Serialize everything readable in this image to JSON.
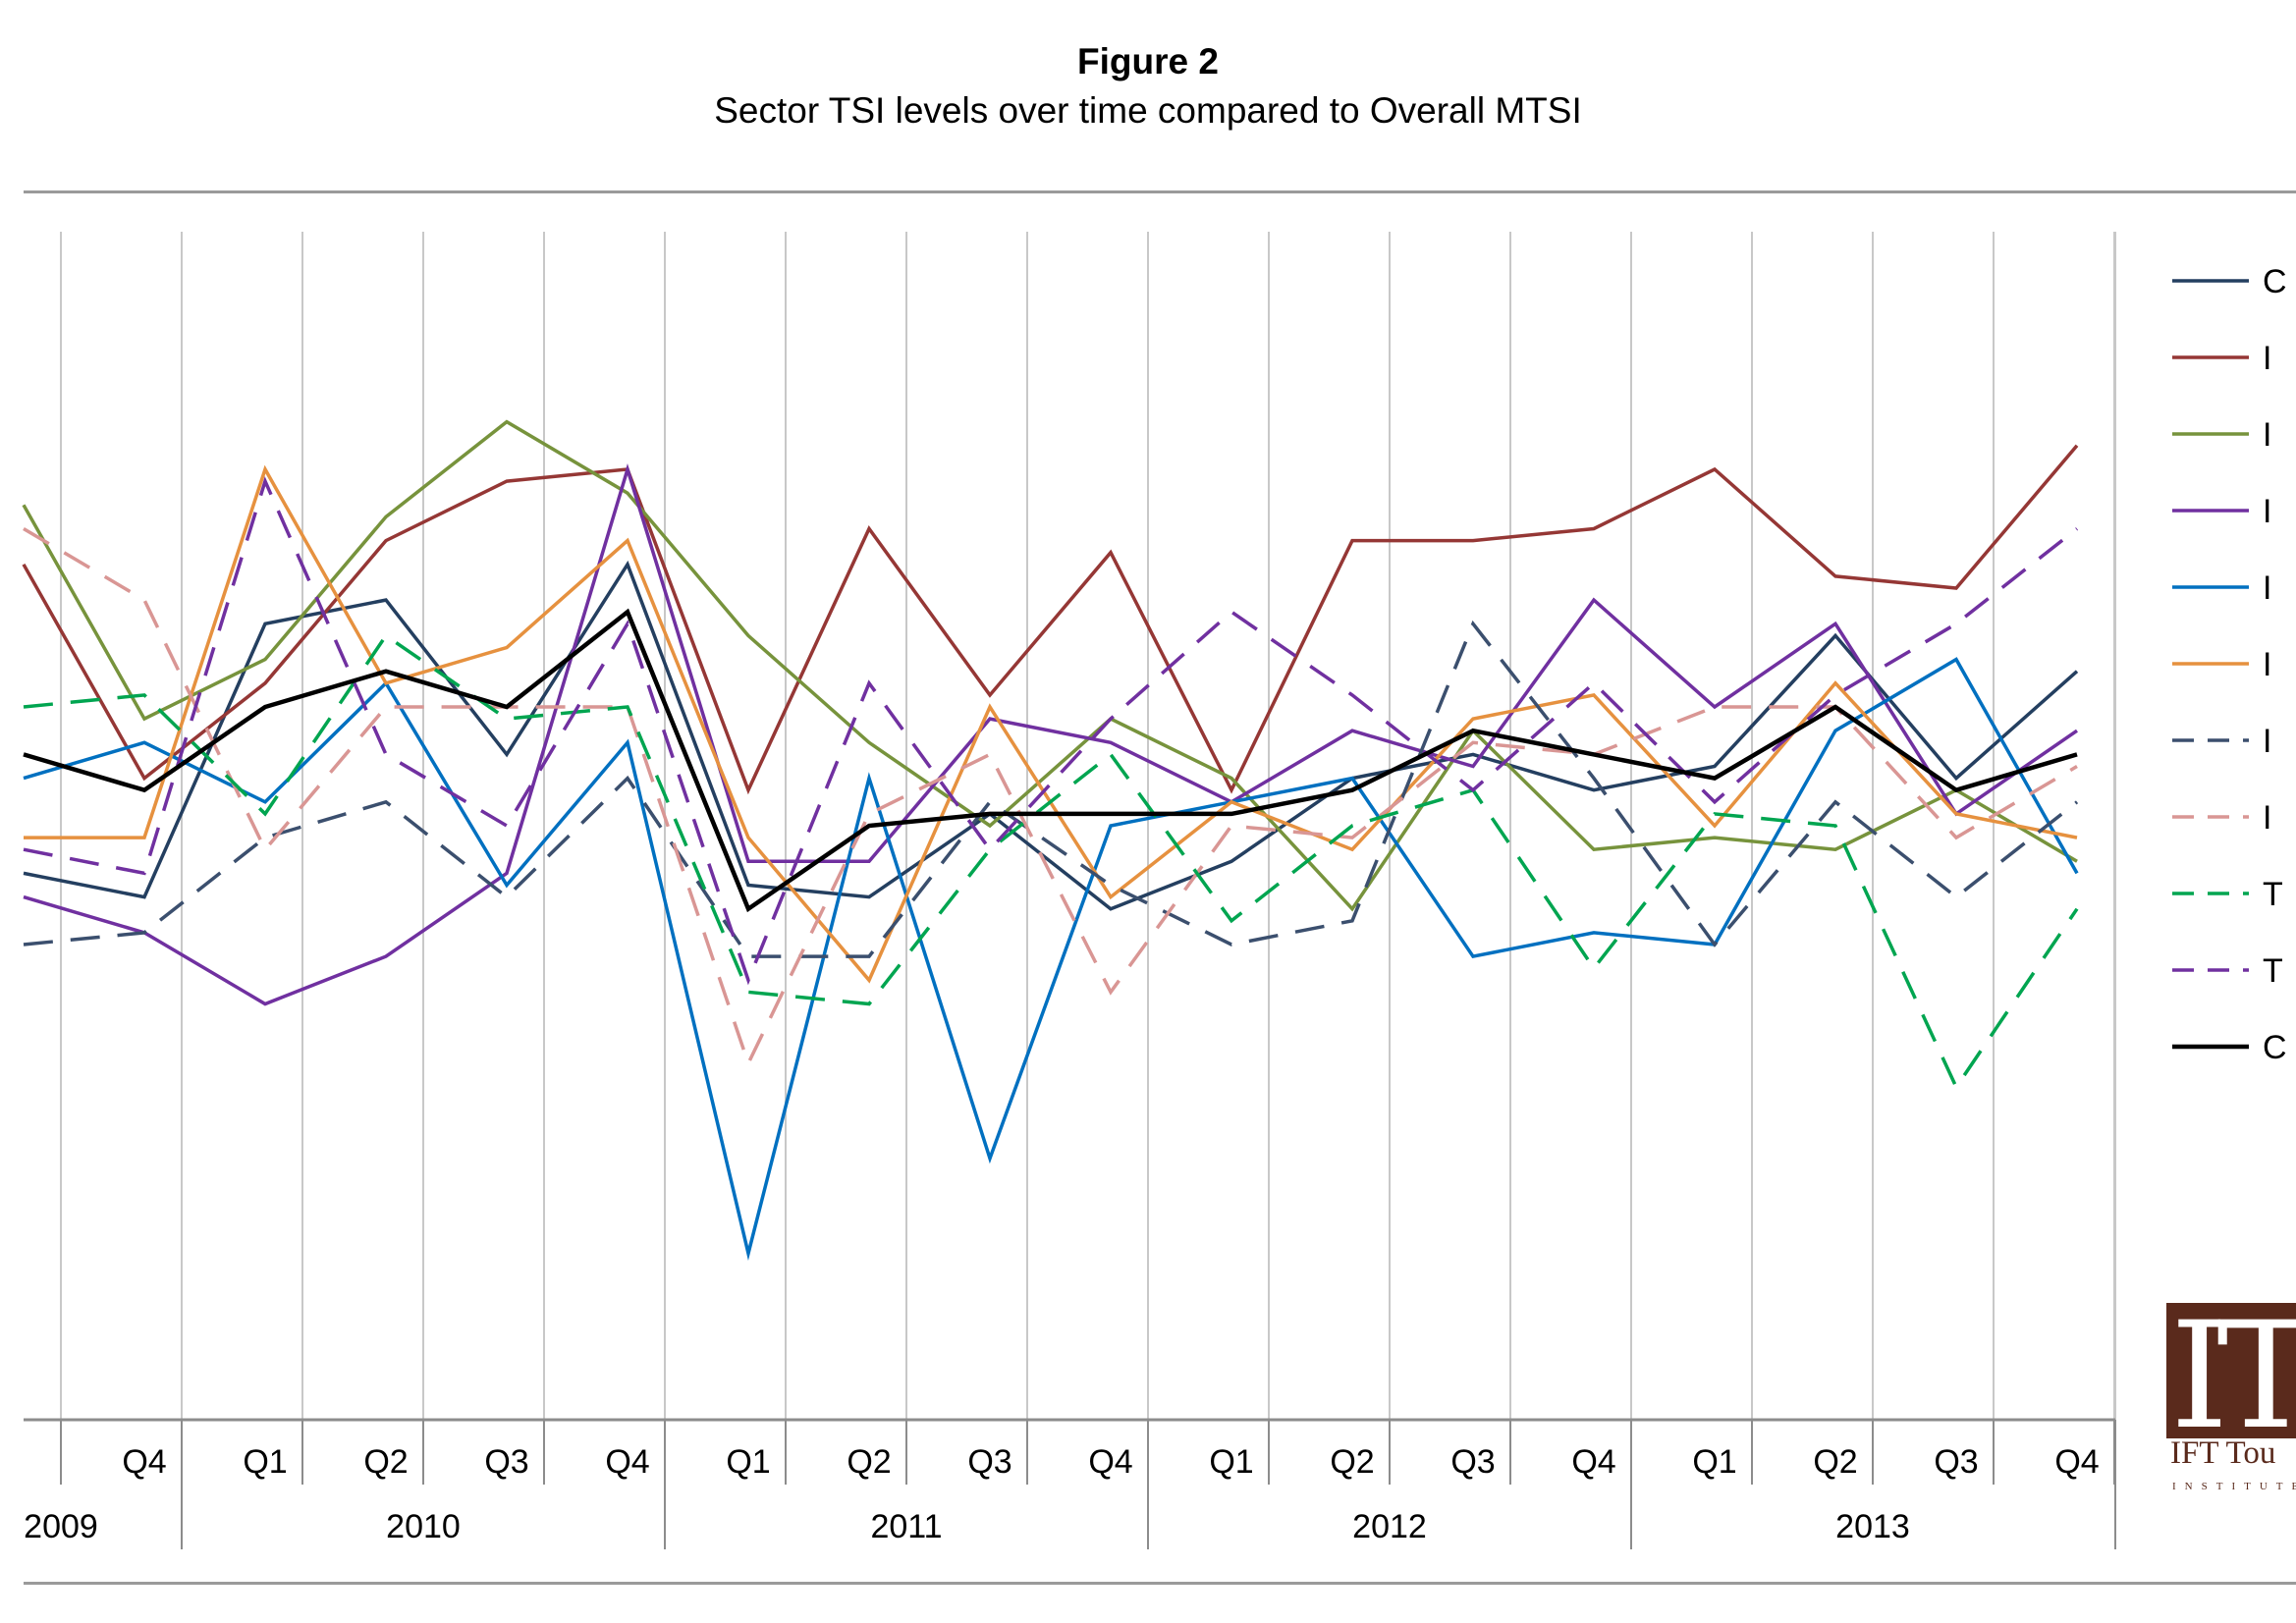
{
  "header": {
    "title": "Figure 2",
    "subtitle": "Sector TSI levels over time compared to Overall MTSI"
  },
  "logo": {
    "mark": "IT",
    "name": "IFT Tou",
    "tagline": "INSTITUTE"
  },
  "colors": {
    "grid": "#c8c8c8",
    "axis": "#8c8c8c"
  },
  "chart_data": {
    "type": "line",
    "title": "Sector TSI levels over time compared to Overall MTSI",
    "quarter_labels": [
      "",
      "Q4",
      "Q1",
      "Q2",
      "Q3",
      "Q4",
      "Q1",
      "Q2",
      "Q3",
      "Q4",
      "Q1",
      "Q2",
      "Q3",
      "Q4",
      "Q1",
      "Q2",
      "Q3",
      "Q4"
    ],
    "year_labels": [
      "2009",
      "2010",
      "2011",
      "2012",
      "2013"
    ],
    "ylim": [
      0,
      1
    ],
    "y_axis_labels_visible": false,
    "grid": "vertical",
    "legend_position": "right",
    "legend_labels": [
      "C",
      "I",
      "I",
      "I",
      "I",
      "I",
      "I",
      "I",
      "T",
      "T",
      "C"
    ],
    "series": [
      {
        "color": "#243f60",
        "dash": "solid",
        "width": 3.5,
        "values": [
          0.46,
          0.44,
          0.67,
          0.69,
          0.56,
          0.72,
          0.45,
          0.44,
          0.51,
          0.43,
          0.47,
          0.54,
          0.56,
          0.53,
          0.55,
          0.66,
          0.54,
          0.63
        ]
      },
      {
        "color": "#953735",
        "dash": "solid",
        "width": 3.5,
        "values": [
          0.72,
          0.54,
          0.62,
          0.74,
          0.79,
          0.8,
          0.53,
          0.75,
          0.61,
          0.73,
          0.53,
          0.74,
          0.74,
          0.75,
          0.8,
          0.71,
          0.7,
          0.82
        ]
      },
      {
        "color": "#77933c",
        "dash": "solid",
        "width": 3.5,
        "values": [
          0.77,
          0.59,
          0.64,
          0.76,
          0.84,
          0.78,
          0.66,
          0.57,
          0.5,
          0.59,
          0.54,
          0.43,
          0.58,
          0.48,
          0.49,
          0.48,
          0.53,
          0.47
        ]
      },
      {
        "color": "#7030a0",
        "dash": "solid",
        "width": 3.5,
        "values": [
          0.44,
          0.41,
          0.35,
          0.39,
          0.46,
          0.8,
          0.47,
          0.47,
          0.59,
          0.57,
          0.52,
          0.58,
          0.55,
          0.69,
          0.6,
          0.67,
          0.51,
          0.58
        ]
      },
      {
        "color": "#0070c0",
        "dash": "solid",
        "width": 3.5,
        "values": [
          0.54,
          0.57,
          0.52,
          0.62,
          0.45,
          0.57,
          0.14,
          0.54,
          0.22,
          0.5,
          0.52,
          0.54,
          0.39,
          0.41,
          0.4,
          0.58,
          0.64,
          0.46
        ]
      },
      {
        "color": "#e6913f",
        "dash": "solid",
        "width": 3.5,
        "values": [
          0.49,
          0.49,
          0.8,
          0.62,
          0.65,
          0.74,
          0.49,
          0.37,
          0.6,
          0.44,
          0.52,
          0.48,
          0.59,
          0.61,
          0.5,
          0.62,
          0.51,
          0.49
        ]
      },
      {
        "color": "#3b4f6e",
        "dash": "long",
        "width": 3.5,
        "values": [
          0.4,
          0.41,
          0.49,
          0.52,
          0.44,
          0.54,
          0.39,
          0.39,
          0.52,
          0.45,
          0.4,
          0.42,
          0.67,
          0.54,
          0.4,
          0.52,
          0.44,
          0.52
        ]
      },
      {
        "color": "#d99694",
        "dash": "long",
        "width": 3.5,
        "values": [
          0.75,
          0.69,
          0.48,
          0.6,
          0.6,
          0.6,
          0.3,
          0.51,
          0.56,
          0.36,
          0.5,
          0.49,
          0.57,
          0.56,
          0.6,
          0.6,
          0.49,
          0.55
        ]
      },
      {
        "color": "#00a550",
        "dash": "long",
        "width": 3.5,
        "values": [
          0.6,
          0.61,
          0.51,
          0.66,
          0.59,
          0.6,
          0.36,
          0.35,
          0.48,
          0.56,
          0.42,
          0.5,
          0.53,
          0.38,
          0.51,
          0.5,
          0.28,
          0.43
        ]
      },
      {
        "color": "#7030a0",
        "dash": "long",
        "width": 3.5,
        "values": [
          0.48,
          0.46,
          0.79,
          0.56,
          0.5,
          0.67,
          0.37,
          0.62,
          0.48,
          0.59,
          0.68,
          0.61,
          0.53,
          0.62,
          0.52,
          0.61,
          0.67,
          0.75
        ]
      },
      {
        "color": "#000000",
        "dash": "solid",
        "width": 4.5,
        "values": [
          0.56,
          0.53,
          0.6,
          0.63,
          0.6,
          0.68,
          0.43,
          0.5,
          0.51,
          0.51,
          0.51,
          0.53,
          0.58,
          0.56,
          0.54,
          0.6,
          0.53,
          0.56
        ]
      }
    ]
  }
}
